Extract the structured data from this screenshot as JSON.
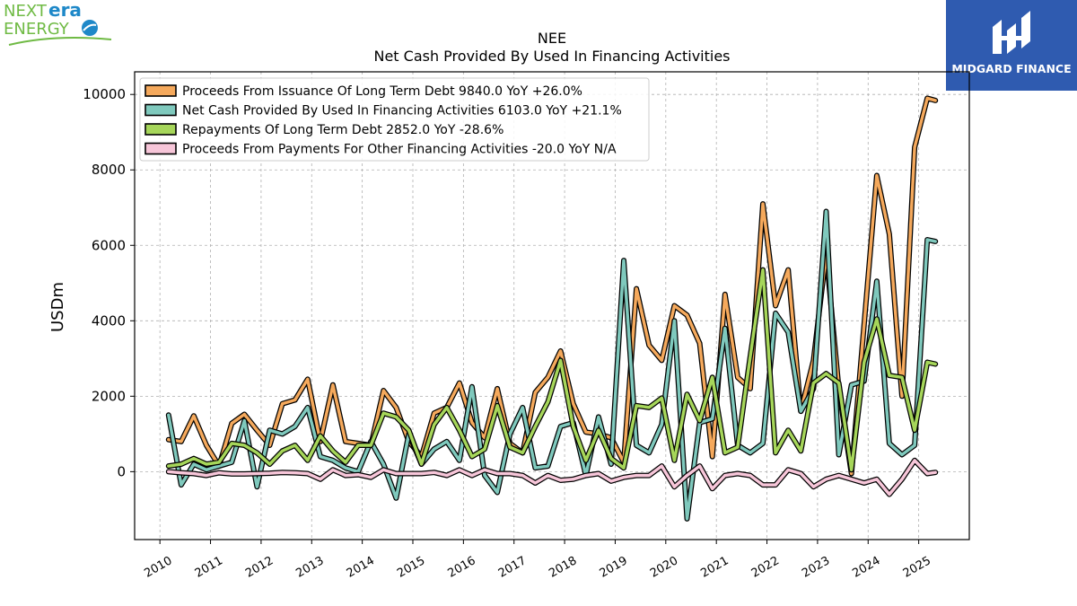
{
  "branding": {
    "left_logo": {
      "word1": "NEXT",
      "word2": "era",
      "word3": "ENERGY",
      "colors": {
        "green": "#6fba44",
        "blue": "#1e88c8"
      }
    },
    "right_logo": {
      "name": "MIDGARD FINANCE",
      "background": "#2f5bb0"
    }
  },
  "chart_data": {
    "type": "line",
    "title": "NEE",
    "subtitle": "Net Cash Provided By Used In Financing Activities",
    "ylabel": "USDm",
    "xlabel": "",
    "xlim": [
      2009.5,
      2026.0
    ],
    "ylim": [
      -1800,
      10600
    ],
    "yticks": [
      0,
      2000,
      4000,
      6000,
      8000,
      10000
    ],
    "xticks": [
      "2010",
      "2011",
      "2012",
      "2013",
      "2014",
      "2015",
      "2016",
      "2017",
      "2018",
      "2019",
      "2020",
      "2021",
      "2022",
      "2023",
      "2024",
      "2025"
    ],
    "grid": true,
    "legend_position": "top-left",
    "series": [
      {
        "name": "Proceeds From Issuance Of Long Term Debt",
        "legend": "Proceeds From Issuance Of Long Term Debt  9840.0 YoY +26.0%",
        "color": "#f5a95c",
        "x": [
          2010.17,
          2010.42,
          2010.67,
          2010.92,
          2011.17,
          2011.42,
          2011.67,
          2011.92,
          2012.17,
          2012.42,
          2012.67,
          2012.92,
          2013.17,
          2013.42,
          2013.67,
          2013.92,
          2014.17,
          2014.42,
          2014.67,
          2014.92,
          2015.17,
          2015.42,
          2015.67,
          2015.92,
          2016.17,
          2016.42,
          2016.67,
          2016.92,
          2017.17,
          2017.42,
          2017.67,
          2017.92,
          2018.17,
          2018.42,
          2018.67,
          2018.92,
          2019.17,
          2019.42,
          2019.67,
          2019.92,
          2020.17,
          2020.42,
          2020.67,
          2020.92,
          2021.17,
          2021.42,
          2021.67,
          2021.92,
          2022.17,
          2022.42,
          2022.67,
          2022.92,
          2023.17,
          2023.42,
          2023.67,
          2023.92,
          2024.17,
          2024.42,
          2024.67,
          2024.92,
          2025.17,
          2025.33
        ],
        "y": [
          850,
          800,
          1480,
          700,
          150,
          1280,
          1520,
          1100,
          700,
          1800,
          1900,
          2450,
          800,
          2300,
          800,
          750,
          700,
          2150,
          1700,
          800,
          400,
          1550,
          1700,
          2350,
          1300,
          900,
          2200,
          750,
          500,
          2100,
          2500,
          3200,
          1800,
          1050,
          1000,
          900,
          250,
          4850,
          3350,
          2950,
          4400,
          4150,
          3400,
          400,
          4700,
          2500,
          2200,
          7100,
          4400,
          5350,
          1600,
          2950,
          5800,
          2200,
          -50,
          3900,
          7850,
          6300,
          2000,
          8600,
          9900,
          9840
        ]
      },
      {
        "name": "Net Cash Provided By Used In Financing Activities",
        "legend": "Net Cash Provided By Used In Financing Activities  6103.0 YoY +21.1%",
        "color": "#7fc9bd",
        "x": [
          2010.17,
          2010.42,
          2010.67,
          2010.92,
          2011.17,
          2011.42,
          2011.67,
          2011.92,
          2012.17,
          2012.42,
          2012.67,
          2012.92,
          2013.17,
          2013.42,
          2013.67,
          2013.92,
          2014.17,
          2014.42,
          2014.67,
          2014.92,
          2015.17,
          2015.42,
          2015.67,
          2015.92,
          2016.17,
          2016.42,
          2016.67,
          2016.92,
          2017.17,
          2017.42,
          2017.67,
          2017.92,
          2018.17,
          2018.42,
          2018.67,
          2018.92,
          2019.17,
          2019.42,
          2019.67,
          2019.92,
          2020.17,
          2020.42,
          2020.67,
          2020.92,
          2021.17,
          2021.42,
          2021.67,
          2021.92,
          2022.17,
          2022.42,
          2022.67,
          2022.92,
          2023.17,
          2023.42,
          2023.67,
          2023.92,
          2024.17,
          2024.42,
          2024.67,
          2024.92,
          2025.17,
          2025.33
        ],
        "y": [
          1500,
          -350,
          200,
          50,
          150,
          250,
          1350,
          -400,
          1100,
          1000,
          1200,
          1700,
          400,
          300,
          100,
          0,
          800,
          200,
          -700,
          1000,
          200,
          600,
          800,
          300,
          2250,
          -100,
          -550,
          1000,
          1700,
          100,
          150,
          1200,
          1300,
          -100,
          1450,
          200,
          5600,
          700,
          500,
          1250,
          4000,
          -1250,
          1300,
          1400,
          3800,
          700,
          500,
          750,
          4200,
          3700,
          1600,
          2200,
          6900,
          450,
          2300,
          2400,
          5050,
          750,
          450,
          700,
          6150,
          6103
        ]
      },
      {
        "name": "Repayments Of Long Term Debt",
        "legend": "Repayments Of Long Term Debt  2852.0 YoY -28.6%",
        "color": "#a6d65a",
        "x": [
          2010.17,
          2010.42,
          2010.67,
          2010.92,
          2011.17,
          2011.42,
          2011.67,
          2011.92,
          2012.17,
          2012.42,
          2012.67,
          2012.92,
          2013.17,
          2013.42,
          2013.67,
          2013.92,
          2014.17,
          2014.42,
          2014.67,
          2014.92,
          2015.17,
          2015.42,
          2015.67,
          2015.92,
          2016.17,
          2016.42,
          2016.67,
          2016.92,
          2017.17,
          2017.42,
          2017.67,
          2017.92,
          2018.17,
          2018.42,
          2018.67,
          2018.92,
          2019.17,
          2019.42,
          2019.67,
          2019.92,
          2020.17,
          2020.42,
          2020.67,
          2020.92,
          2021.17,
          2021.42,
          2021.67,
          2021.92,
          2022.17,
          2022.42,
          2022.67,
          2022.92,
          2023.17,
          2023.42,
          2023.67,
          2023.92,
          2024.17,
          2024.42,
          2024.67,
          2024.92,
          2025.17,
          2025.33
        ],
        "y": [
          150,
          200,
          350,
          200,
          250,
          750,
          700,
          500,
          200,
          550,
          700,
          300,
          950,
          550,
          250,
          700,
          700,
          1550,
          1450,
          1100,
          200,
          1250,
          1700,
          1100,
          400,
          600,
          1750,
          650,
          500,
          1200,
          1850,
          2950,
          1200,
          300,
          1100,
          350,
          100,
          1750,
          1700,
          1950,
          300,
          2050,
          1350,
          2500,
          500,
          650,
          3050,
          5350,
          500,
          1100,
          550,
          2350,
          2600,
          2350,
          50,
          2900,
          4050,
          2550,
          2500,
          1100,
          2900,
          2852
        ]
      },
      {
        "name": "Proceeds From Payments For Other Financing Activities",
        "legend": "Proceeds From Payments For Other Financing Activities  -20.0 YoY N/A",
        "color": "#f7c6d9",
        "x": [
          2010.17,
          2010.42,
          2010.67,
          2010.92,
          2011.17,
          2011.42,
          2011.67,
          2011.92,
          2012.17,
          2012.42,
          2012.67,
          2012.92,
          2013.17,
          2013.42,
          2013.67,
          2013.92,
          2014.17,
          2014.42,
          2014.67,
          2014.92,
          2015.17,
          2015.42,
          2015.67,
          2015.92,
          2016.17,
          2016.42,
          2016.67,
          2016.92,
          2017.17,
          2017.42,
          2017.67,
          2017.92,
          2018.17,
          2018.42,
          2018.67,
          2018.92,
          2019.17,
          2019.42,
          2019.67,
          2019.92,
          2020.17,
          2020.42,
          2020.67,
          2020.92,
          2021.17,
          2021.42,
          2021.67,
          2021.92,
          2022.17,
          2022.42,
          2022.67,
          2022.92,
          2023.17,
          2023.42,
          2023.67,
          2023.92,
          2024.17,
          2024.42,
          2024.67,
          2024.92,
          2025.17,
          2025.33
        ],
        "y": [
          0,
          -30,
          -50,
          -100,
          -30,
          -60,
          -60,
          -50,
          -40,
          -20,
          -30,
          -50,
          -200,
          50,
          -100,
          -80,
          -150,
          50,
          -50,
          -50,
          -50,
          -20,
          -100,
          50,
          -100,
          50,
          -50,
          -50,
          -100,
          -300,
          -100,
          -230,
          -200,
          -100,
          -50,
          -250,
          -150,
          -100,
          -100,
          150,
          -400,
          -100,
          150,
          -450,
          -100,
          -50,
          -100,
          -350,
          -350,
          50,
          -50,
          -400,
          -200,
          -100,
          -200,
          -300,
          -200,
          -600,
          -200,
          300,
          -50,
          -20
        ]
      }
    ]
  }
}
